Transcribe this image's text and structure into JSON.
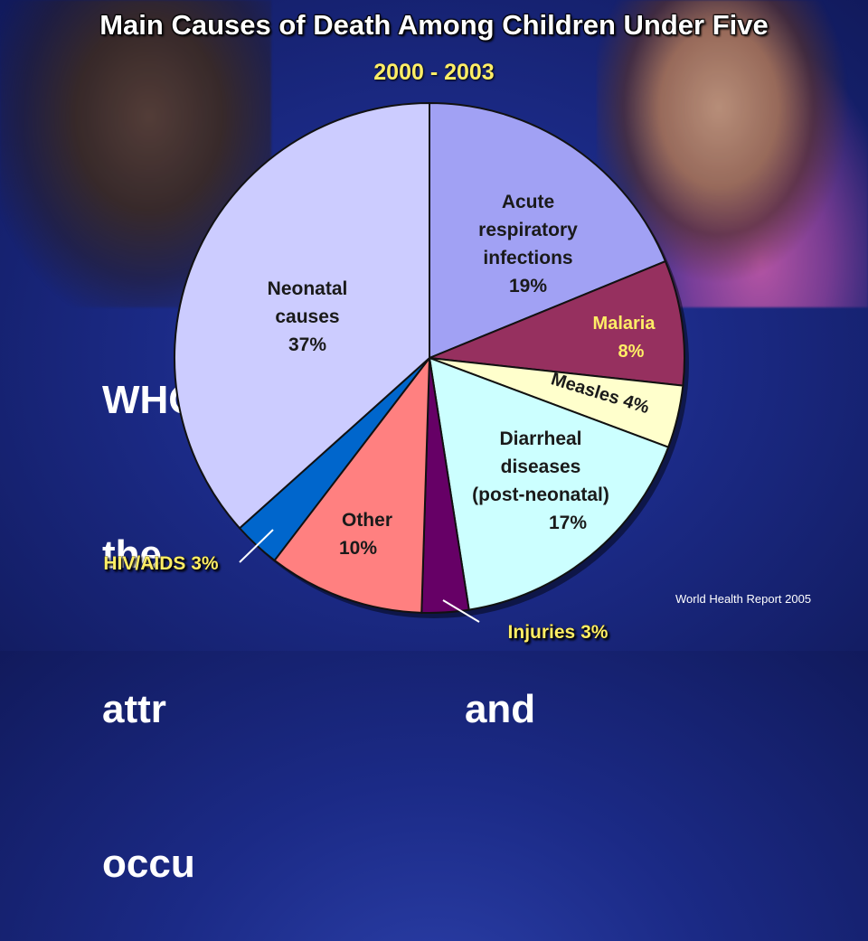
{
  "header": {
    "title": "Main Causes of Death Among Children Under Five",
    "subtitle": "2000 - 2003"
  },
  "background_text": {
    "line1": "WHO            % of",
    "line2": "the              can be",
    "line3": "attr                           and",
    "line4": "occu"
  },
  "source": "World Health Report 2005",
  "colors": {
    "title": "#ffffff",
    "subtitle": "#ffee66",
    "background": "#1b2a86"
  },
  "chart_data": {
    "type": "pie",
    "title": "Main Causes of Death Among Children Under Five",
    "subtitle": "2000 - 2003",
    "slices": [
      {
        "label_lines": [
          "Acute",
          "respiratory",
          "infections",
          "19%"
        ],
        "value": 19,
        "color": "#a1a1f4",
        "text_color": "#1a1a1a"
      },
      {
        "label_lines": [
          "Malaria",
          "8%"
        ],
        "value": 8,
        "color": "#96305f",
        "text_color": "#ffee66"
      },
      {
        "label_lines": [
          "Measles",
          "4%"
        ],
        "value": 4,
        "color": "#ffffcc",
        "text_color": "#1a1a1a"
      },
      {
        "label_lines": [
          "Diarrheal",
          "diseases",
          "(post-neonatal)",
          "17%"
        ],
        "value": 17,
        "color": "#ccffff",
        "text_color": "#1a1a1a"
      },
      {
        "label_lines": [
          "Injuries 3%"
        ],
        "value": 3,
        "color": "#660066",
        "text_color": "#ffee66",
        "callout": true
      },
      {
        "label_lines": [
          "Other",
          "10%"
        ],
        "value": 10,
        "color": "#ff8080",
        "text_color": "#1a1a1a"
      },
      {
        "label_lines": [
          "HIV/AIDS 3%"
        ],
        "value": 3,
        "color": "#0066cc",
        "text_color": "#ffee66",
        "callout": true
      },
      {
        "label_lines": [
          "Neonatal",
          "causes",
          "37%"
        ],
        "value": 37,
        "color": "#ccccff",
        "text_color": "#1a1a1a"
      }
    ]
  }
}
